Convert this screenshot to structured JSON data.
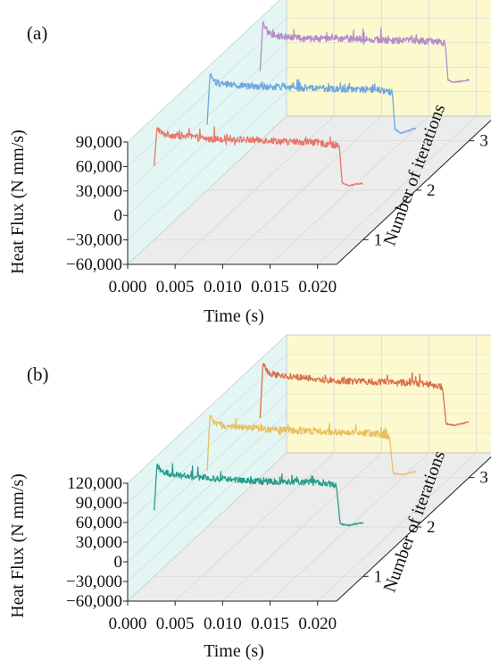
{
  "figure": {
    "panels": [
      {
        "label": "(a)",
        "x_title": "Time (s)",
        "y_title": "Heat Flux (N mm/s)",
        "z_title": "Number of iterations"
      },
      {
        "label": "(b)",
        "x_title": "Time (s)",
        "y_title": "Heat Flux (N mm/s)",
        "z_title": "Number of iterations"
      }
    ]
  },
  "chart_data": [
    {
      "type": "line",
      "title": "",
      "panel_label": "(a)",
      "xlabel": "Time (s)",
      "ylabel": "Heat Flux (N mm/s)",
      "zlabel": "Number of iterations",
      "xlim": [
        0.0,
        0.022
      ],
      "ylim": [
        -60000,
        90000
      ],
      "x_ticks": [
        "0.000",
        "0.005",
        "0.010",
        "0.015",
        "0.020"
      ],
      "x_tick_values": [
        0.0,
        0.005,
        0.01,
        0.015,
        0.02
      ],
      "y_ticks": [
        "90,000",
        "60,000",
        "30,000",
        "0",
        "−30,000",
        "−60,000"
      ],
      "y_tick_values": [
        90000,
        60000,
        30000,
        0,
        -30000,
        -60000
      ],
      "z_ticks": [
        "1",
        "2",
        "3"
      ],
      "series": [
        {
          "iteration": 1,
          "color": "#e8766b",
          "x": [
            0.0,
            0.0003,
            0.0008,
            0.002,
            0.004,
            0.006,
            0.008,
            0.01,
            0.012,
            0.014,
            0.016,
            0.018,
            0.0195,
            0.0198,
            0.0205,
            0.0212,
            0.022
          ],
          "y": [
            30000,
            78000,
            70000,
            68000,
            66000,
            63000,
            64000,
            62000,
            62000,
            60000,
            60000,
            58000,
            55000,
            10000,
            6000,
            8000,
            9000
          ]
        },
        {
          "iteration": 2,
          "color": "#6fa6df",
          "x": [
            0.0,
            0.0003,
            0.0008,
            0.002,
            0.004,
            0.006,
            0.008,
            0.01,
            0.012,
            0.014,
            0.016,
            0.018,
            0.0195,
            0.0198,
            0.0205,
            0.0212,
            0.022
          ],
          "y": [
            20000,
            82000,
            72000,
            70000,
            68000,
            67000,
            67000,
            65000,
            65000,
            64000,
            64000,
            63000,
            60000,
            14000,
            10000,
            13000,
            16000
          ]
        },
        {
          "iteration": 3,
          "color": "#b48cc8",
          "x": [
            0.0,
            0.0003,
            0.0008,
            0.002,
            0.004,
            0.006,
            0.008,
            0.01,
            0.012,
            0.014,
            0.016,
            0.018,
            0.0195,
            0.0198,
            0.0205,
            0.0212,
            0.022
          ],
          "y": [
            25000,
            86000,
            72000,
            68000,
            66000,
            65000,
            66000,
            65000,
            64000,
            63000,
            63000,
            62000,
            60000,
            14000,
            12000,
            13000,
            15000
          ]
        }
      ]
    },
    {
      "type": "line",
      "title": "",
      "panel_label": "(b)",
      "xlabel": "Time (s)",
      "ylabel": "Heat Flux (N mm/s)",
      "zlabel": "Number of iterations",
      "xlim": [
        0.0,
        0.022
      ],
      "ylim": [
        -60000,
        120000
      ],
      "x_ticks": [
        "0.000",
        "0.005",
        "0.010",
        "0.015",
        "0.020"
      ],
      "x_tick_values": [
        0.0,
        0.005,
        0.01,
        0.015,
        0.02
      ],
      "y_ticks": [
        "120,000",
        "90,000",
        "60,000",
        "30,000",
        "0",
        "−30,000",
        "−60,000"
      ],
      "y_tick_values": [
        120000,
        90000,
        60000,
        30000,
        0,
        -30000,
        -60000
      ],
      "z_ticks": [
        "1",
        "2",
        "3"
      ],
      "series": [
        {
          "iteration": 1,
          "color": "#279c8c",
          "x": [
            0.0,
            0.0003,
            0.0008,
            0.002,
            0.004,
            0.006,
            0.008,
            0.01,
            0.012,
            0.014,
            0.016,
            0.018,
            0.0192,
            0.0196,
            0.0205,
            0.0212,
            0.022
          ],
          "y": [
            40000,
            112000,
            100000,
            95000,
            92000,
            90000,
            88000,
            86000,
            85000,
            85000,
            84000,
            83000,
            78000,
            20000,
            18000,
            20000,
            22000
          ]
        },
        {
          "iteration": 2,
          "color": "#e8c060",
          "x": [
            0.0,
            0.0003,
            0.0008,
            0.002,
            0.004,
            0.006,
            0.008,
            0.01,
            0.012,
            0.014,
            0.016,
            0.018,
            0.0192,
            0.0196,
            0.0205,
            0.0212,
            0.022
          ],
          "y": [
            25000,
            110000,
            98000,
            94000,
            92000,
            90000,
            88000,
            86000,
            86000,
            84000,
            84000,
            82000,
            78000,
            22000,
            20000,
            22000,
            25000
          ]
        },
        {
          "iteration": 3,
          "color": "#d8704c",
          "x": [
            0.0,
            0.0003,
            0.0008,
            0.002,
            0.004,
            0.006,
            0.008,
            0.01,
            0.012,
            0.014,
            0.016,
            0.018,
            0.0192,
            0.0196,
            0.0205,
            0.0212,
            0.022
          ],
          "y": [
            30000,
            115000,
            100000,
            96000,
            93000,
            90000,
            88000,
            87000,
            86000,
            85000,
            84000,
            82000,
            78000,
            22000,
            20000,
            22000,
            25000
          ]
        }
      ]
    }
  ]
}
